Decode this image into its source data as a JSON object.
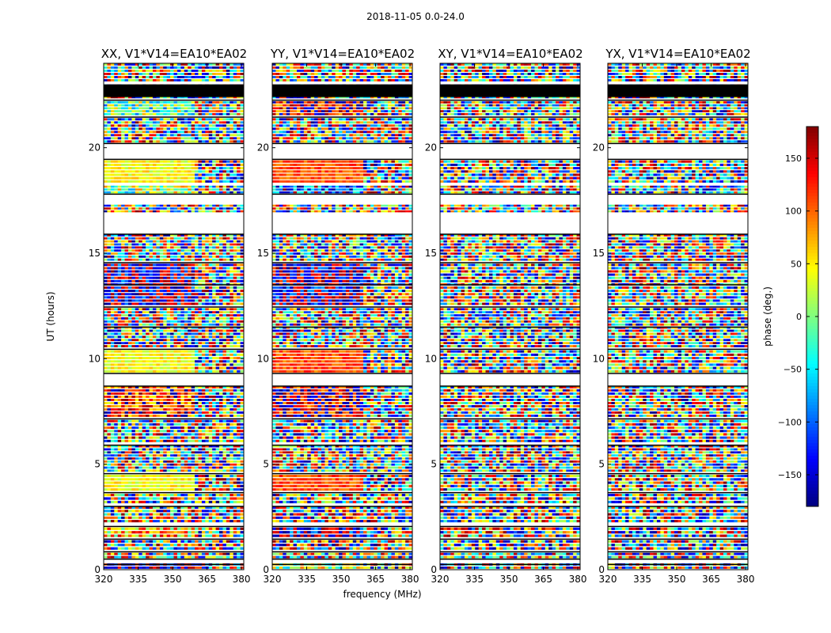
{
  "chart_data": {
    "type": "heatmap",
    "suptitle": "2018-11-05 0.0-24.0",
    "ylabel": "UT (hours)",
    "xlabel": "frequency (MHz)",
    "colorbar_label": "phase (deg.)",
    "colormap": "jet",
    "colorbar_range": [
      -180,
      180
    ],
    "colorbar_ticks": [
      150,
      100,
      50,
      0,
      -50,
      -100,
      -150
    ],
    "xlim": [
      320,
      381
    ],
    "ylim": [
      0,
      24
    ],
    "xticks": [
      320,
      335,
      350,
      365,
      380
    ],
    "yticks": [
      0,
      5,
      10,
      15,
      20
    ],
    "panels": [
      {
        "title": "XX, V1*V14=EA10*EA02",
        "pol": "XX"
      },
      {
        "title": "YY, V1*V14=EA10*EA02",
        "pol": "YY"
      },
      {
        "title": "XY, V1*V14=EA10*EA02",
        "pol": "XY"
      },
      {
        "title": "YX, V1*V14=EA10*EA02",
        "pol": "YX"
      }
    ],
    "data_blocks_ut_hours": [
      [
        0.0,
        0.3
      ],
      [
        0.5,
        0.8
      ],
      [
        0.9,
        1.4
      ],
      [
        1.5,
        2.0
      ],
      [
        2.2,
        3.0
      ],
      [
        3.1,
        3.6
      ],
      [
        3.7,
        4.5
      ],
      [
        4.6,
        5.9
      ],
      [
        6.0,
        7.1
      ],
      [
        7.2,
        8.7
      ],
      [
        9.3,
        10.4
      ],
      [
        10.5,
        12.4
      ],
      [
        12.5,
        14.5
      ],
      [
        14.6,
        15.9
      ],
      [
        16.9,
        17.3
      ],
      [
        17.8,
        18.2
      ],
      [
        18.3,
        19.4
      ],
      [
        20.2,
        21.4
      ],
      [
        21.5,
        22.2
      ],
      [
        22.3,
        23.0
      ],
      [
        23.1,
        24.0
      ]
    ]
  },
  "colors": {
    "frame": "#000000",
    "background": "#ffffff",
    "flagged_line": "#000000"
  }
}
